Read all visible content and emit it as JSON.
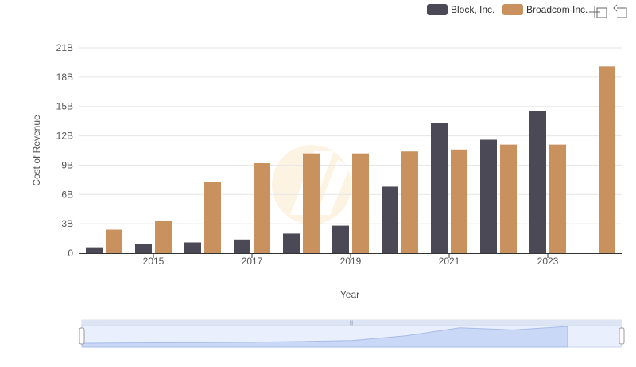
{
  "chart_data": {
    "type": "bar",
    "title": "",
    "xlabel": "Year",
    "ylabel": "Cost of Revenue",
    "ylim": [
      0,
      21
    ],
    "y_unit": "B",
    "y_ticks": [
      0,
      3,
      6,
      9,
      12,
      15,
      18,
      21
    ],
    "y_tick_labels": [
      "0",
      "3B",
      "6B",
      "9B",
      "12B",
      "15B",
      "18B",
      "21B"
    ],
    "x": [
      2014,
      2015,
      2016,
      2017,
      2018,
      2019,
      2020,
      2021,
      2022,
      2023,
      2024
    ],
    "x_tick_labels": [
      "2015",
      "2017",
      "2019",
      "2021",
      "2023"
    ],
    "series": [
      {
        "name": "Block, Inc.",
        "color": "#4a4955",
        "values": [
          0.6,
          0.9,
          1.1,
          1.4,
          2.0,
          2.8,
          6.8,
          13.3,
          11.6,
          14.5,
          null
        ]
      },
      {
        "name": "Broadcom Inc.",
        "color": "#c8915e",
        "values": [
          2.4,
          3.3,
          7.3,
          9.2,
          10.2,
          10.2,
          10.4,
          10.6,
          11.1,
          11.1,
          19.1
        ]
      }
    ],
    "legend_position": "top-right",
    "grid": true
  },
  "toolbar": {
    "zoom_icon": "zoom-icon",
    "reset_icon": "reset-icon"
  },
  "colors": {
    "navigator_fill": "#dbe5fb",
    "navigator_border": "#c7d2e8",
    "navigator_line": "#a8bbe8"
  }
}
